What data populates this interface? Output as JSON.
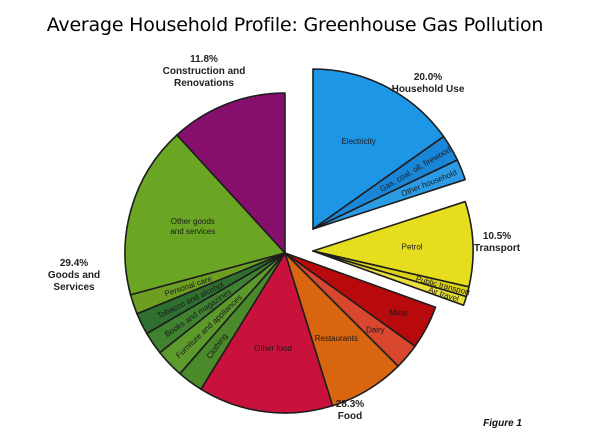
{
  "chart_data": {
    "type": "pie",
    "title": "Average Household Profile: Greenhouse Gas Pollution",
    "footnote": "Figure 1",
    "groups": [
      {
        "name": "Household Use",
        "pct_label": "20.0%",
        "value": 20.0
      },
      {
        "name": "Transport",
        "pct_label": "10.5%",
        "value": 10.5
      },
      {
        "name": "Food",
        "pct_label": "28.3%",
        "value": 28.3
      },
      {
        "name": "Goods and Services",
        "pct_label": "29.4%",
        "value": 29.4
      },
      {
        "name": "Construction and Renovations",
        "pct_label": "11.8%",
        "value": 11.8
      }
    ],
    "slices": [
      {
        "label": "Electricity",
        "group": "Household Use",
        "value": 15.2,
        "color": "#1e96e6"
      },
      {
        "label": "Gas, coal, oil, firewood",
        "group": "Household Use",
        "value": 2.7,
        "color": "#1a86d8"
      },
      {
        "label": "Other household",
        "group": "Household Use",
        "value": 2.1,
        "color": "#2c9be6"
      },
      {
        "label": "Petrol",
        "group": "Transport",
        "value": 8.6,
        "color": "#e6dd1e"
      },
      {
        "label": "Public transport",
        "group": "Transport",
        "value": 1.0,
        "color": "#ddd21a"
      },
      {
        "label": "Air travel",
        "group": "Transport",
        "value": 0.9,
        "color": "#e8df3a"
      },
      {
        "label": "Meat",
        "group": "Food",
        "value": 4.4,
        "color": "#b8090d"
      },
      {
        "label": "Dairy",
        "group": "Food",
        "value": 2.6,
        "color": "#d9482e"
      },
      {
        "label": "Restaurants",
        "group": "Food",
        "value": 7.7,
        "color": "#d8650f"
      },
      {
        "label": "Other food",
        "group": "Food",
        "value": 13.6,
        "color": "#c8123c"
      },
      {
        "label": "Clothing",
        "group": "Goods and Services",
        "value": 2.6,
        "color": "#4a8a2a"
      },
      {
        "label": "Furniture and appliances",
        "group": "Goods and Services",
        "value": 2.9,
        "color": "#5c9a2c"
      },
      {
        "label": "Books and magazines",
        "group": "Goods and Services",
        "value": 2.3,
        "color": "#3f8230"
      },
      {
        "label": "Tobacco and alcohol",
        "group": "Goods and Services",
        "value": 2.2,
        "color": "#2f6f30"
      },
      {
        "label": "Personal care",
        "group": "Goods and Services",
        "value": 2.0,
        "color": "#6c9e22"
      },
      {
        "label": "Other goods and services",
        "group": "Goods and Services",
        "value": 17.4,
        "color": "#6aa623"
      },
      {
        "label": "Construction and Renovations",
        "group": "Construction and Renovations",
        "value": 11.8,
        "color": "#860f6e"
      }
    ],
    "inside_labels": [
      {
        "lines": [
          "Electricity"
        ],
        "slice": "Electricity"
      },
      {
        "lines": [
          "Gas, coal, oil, firewood"
        ],
        "slice": "Gas, coal, oil, firewood"
      },
      {
        "lines": [
          "Other household"
        ],
        "slice": "Other household"
      },
      {
        "lines": [
          "Petrol"
        ],
        "slice": "Petrol"
      },
      {
        "lines": [
          "Public transport"
        ],
        "slice": "Public transport"
      },
      {
        "lines": [
          "Air travel"
        ],
        "slice": "Air travel"
      },
      {
        "lines": [
          "Meat"
        ],
        "slice": "Meat"
      },
      {
        "lines": [
          "Dairy"
        ],
        "slice": "Dairy"
      },
      {
        "lines": [
          "Restaurants"
        ],
        "slice": "Restaurants"
      },
      {
        "lines": [
          "Other food"
        ],
        "slice": "Other food"
      },
      {
        "lines": [
          "Clothing"
        ],
        "slice": "Clothing"
      },
      {
        "lines": [
          "Furniture and appliances"
        ],
        "slice": "Furniture and appliances"
      },
      {
        "lines": [
          "Books and magazines"
        ],
        "slice": "Books and magazines"
      },
      {
        "lines": [
          "Tobacco and alcohol"
        ],
        "slice": "Tobacco and alcohol"
      },
      {
        "lines": [
          "Personal care"
        ],
        "slice": "Personal care"
      },
      {
        "lines": [
          "Other goods",
          "and services"
        ],
        "slice": "Other goods and services"
      }
    ],
    "group_label_lines": {
      "Household Use": [
        "20.0%",
        "Household Use"
      ],
      "Transport": [
        "10.5%",
        "Transport"
      ],
      "Food": [
        "28.3%",
        "Food"
      ],
      "Goods and Services": [
        "29.4%",
        "Goods and",
        "Services"
      ],
      "Construction and Renovations": [
        "11.8%",
        "Construction and",
        "Renovations"
      ]
    }
  }
}
